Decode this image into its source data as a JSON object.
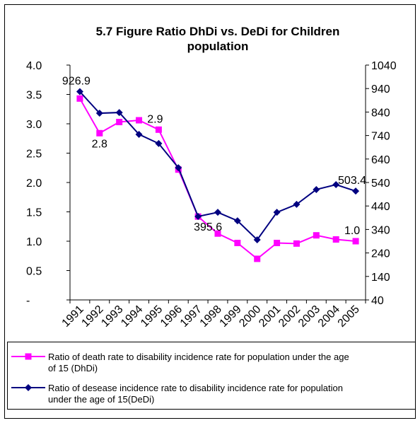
{
  "chart_data": {
    "type": "line",
    "title": "5.7 Figure Ratio DhDi vs. DeDi  for Children population",
    "categories": [
      "1991",
      "1992",
      "1993",
      "1994",
      "1995",
      "1996",
      "1997",
      "1998",
      "1999",
      "2000",
      "2001",
      "2002",
      "2003",
      "2004",
      "2005"
    ],
    "series": [
      {
        "name": "Ratio of death rate to disability incidence rate for population under the age of 15 (DhDi)",
        "color": "#ff00ff",
        "marker": "square",
        "axis": "y",
        "values": [
          3.43,
          2.84,
          3.03,
          3.06,
          2.9,
          2.22,
          1.42,
          1.13,
          0.97,
          0.7,
          0.97,
          0.96,
          1.1,
          1.03,
          1.0
        ],
        "value_labels": [
          null,
          "2.8",
          null,
          null,
          "2.9",
          null,
          null,
          null,
          null,
          null,
          null,
          null,
          null,
          null,
          "1.0"
        ]
      },
      {
        "name": "Ratio of desease incidence rate to disability incidence rate for population under the age of 15(DeDi)",
        "color": "#000080",
        "marker": "diamond",
        "axis": "y2",
        "values": [
          926.9,
          835,
          838,
          745,
          706,
          603,
          395.6,
          413,
          377,
          296,
          413,
          447,
          510,
          531,
          503.4
        ],
        "value_labels": [
          "926.9",
          null,
          null,
          null,
          null,
          null,
          "395.6",
          null,
          null,
          null,
          null,
          null,
          null,
          null,
          "503.4"
        ]
      }
    ],
    "ylim": [
      0,
      4
    ],
    "yticks": [
      {
        "value": 0,
        "label": "-"
      },
      0.5,
      {
        "value": 1,
        "label": "1.0"
      },
      1.5,
      {
        "value": 2,
        "label": "2.0"
      },
      2.5,
      {
        "value": 3,
        "label": "3.0"
      },
      3.5,
      {
        "value": 4,
        "label": "4.0"
      }
    ],
    "y2lim": [
      40,
      1040
    ],
    "y2ticks": [
      40,
      140,
      240,
      340,
      440,
      540,
      640,
      740,
      840,
      940,
      1040
    ],
    "grid": false
  }
}
